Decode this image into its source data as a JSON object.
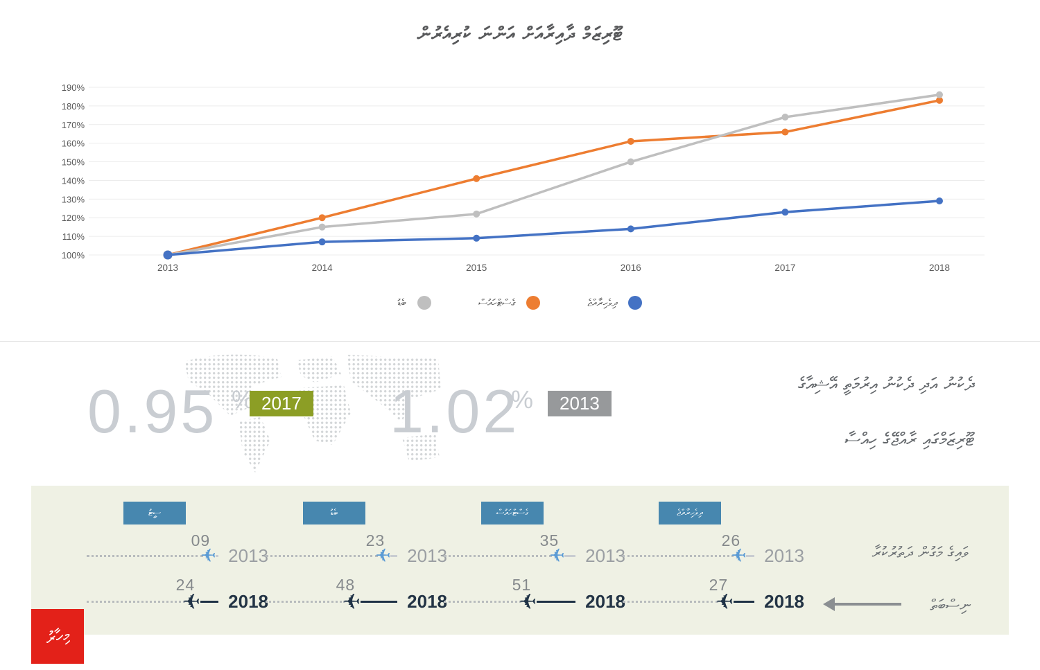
{
  "title": "ޓޫރިޒަމް ދާއިރާއަށް އަންނަ ކުރިއެރުން",
  "chart_data": {
    "type": "line",
    "categories": [
      "2013",
      "2014",
      "2015",
      "2016",
      "2017",
      "2018"
    ],
    "y_ticks": [
      "190%",
      "180%",
      "170%",
      "160%",
      "150%",
      "140%",
      "130%",
      "120%",
      "110%",
      "100%"
    ],
    "ylim": [
      100,
      190
    ],
    "grid": true,
    "legend_position": "bottom",
    "series": [
      {
        "name": "ބެޑު",
        "color": "#bfbfbf",
        "values": [
          100,
          115,
          122,
          150,
          174,
          186
        ]
      },
      {
        "name": "ގެސްޓްހައުސް",
        "color": "#ed7d31",
        "values": [
          100,
          120,
          141,
          161,
          166,
          183
        ]
      },
      {
        "name": "ދިވެހިރާއްޖެ",
        "color": "#4472c4",
        "values": [
          100,
          107,
          109,
          114,
          123,
          129
        ]
      }
    ]
  },
  "stats": {
    "share_2017": {
      "value": "0.95",
      "unit": "%",
      "badge": "2017",
      "badge_color": "#8c9e25"
    },
    "share_2013": {
      "value": "1.02",
      "unit": "%",
      "badge": "2013",
      "badge_color": "#97999b"
    },
    "description_line1": "ދެކުނު އަދި ދެކުނު އިރުމަތީ އޭޝިއާގެ",
    "description_line2": "ޓޫރިޒަމްގައި ރާއްޖޭގެ ހިއްސާ"
  },
  "bottom": {
    "header_color": "#4787af",
    "year_2013_label": "2013",
    "year_2018_label": "2018",
    "categories": [
      {
        "label": "ސީޓު",
        "v2013": "09",
        "v2018": "24"
      },
      {
        "label": "ބެޑު",
        "v2013": "23",
        "v2018": "48"
      },
      {
        "label": "ގެސްޓްހައުސް",
        "v2013": "35",
        "v2018": "51"
      },
      {
        "label": "ދިވެހިރާއްޖެ",
        "v2013": "26",
        "v2018": "27"
      }
    ],
    "note_line1": "ވައިގެ މަގުން ދަތުރުކުރާ",
    "note_line2": "ނިސްބަތް",
    "airplane_icon": "✈"
  },
  "logo_text": "މިހާރު",
  "colors": {
    "grid_line": "#ececec",
    "axis_text": "#595959",
    "panel_bg": "#eff1e4",
    "plane_2013": "#5b9bd5",
    "plane_2018": "#1f3246",
    "stat_number": "#c9cdd2",
    "logo_bg": "#e32119",
    "map_dots": "#d4d7d9"
  }
}
